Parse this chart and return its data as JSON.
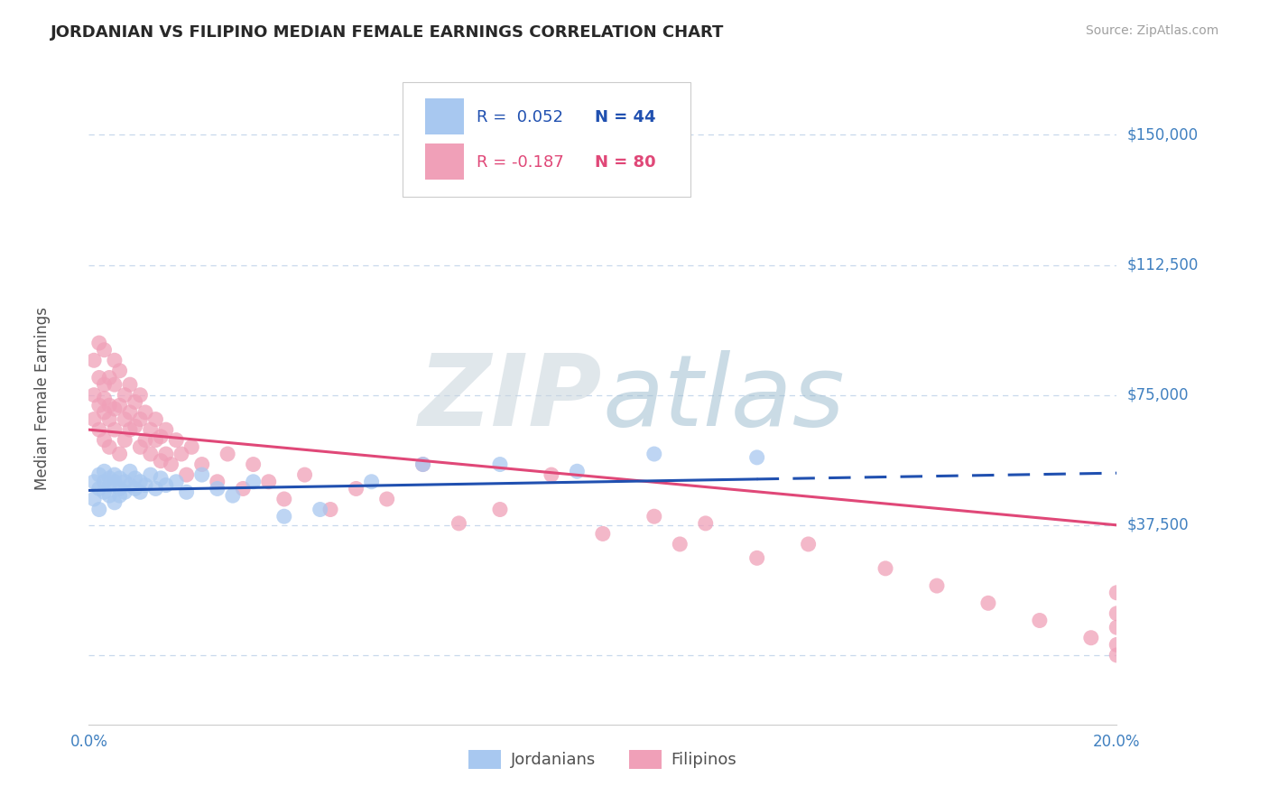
{
  "title": "JORDANIAN VS FILIPINO MEDIAN FEMALE EARNINGS CORRELATION CHART",
  "source_text": "Source: ZipAtlas.com",
  "ylabel": "Median Female Earnings",
  "xlim": [
    0.0,
    0.2
  ],
  "ylim": [
    -20000,
    168000
  ],
  "yticks": [
    0,
    37500,
    75000,
    112500,
    150000
  ],
  "ytick_labels": [
    "",
    "$37,500",
    "$75,000",
    "$112,500",
    "$150,000"
  ],
  "xticks": [
    0.0,
    0.04,
    0.08,
    0.12,
    0.16,
    0.2
  ],
  "xtick_labels": [
    "0.0%",
    "",
    "",
    "",
    "",
    "20.0%"
  ],
  "legend_r1": "R =  0.052",
  "legend_n1": "N = 44",
  "legend_r2": "R = -0.187",
  "legend_n2": "N = 80",
  "jordanian_color": "#A8C8F0",
  "filipino_color": "#F0A0B8",
  "jordan_line_color": "#2050B0",
  "filipino_line_color": "#E04878",
  "grid_color": "#C8D8EC",
  "background_color": "#FFFFFF",
  "title_color": "#282828",
  "axis_label_color": "#505050",
  "tick_label_color": "#4080C0",
  "source_color": "#A0A0A0",
  "jordanians_label": "Jordanians",
  "filipinos_label": "Filipinos",
  "jordan_R": 0.052,
  "jordan_N": 44,
  "filipino_R": -0.187,
  "filipino_N": 80,
  "jordan_line_x0": 0.0,
  "jordan_line_x_solid_end": 0.13,
  "jordan_line_x1": 0.2,
  "jordan_line_y0": 47500,
  "jordan_line_y1": 52500,
  "filipino_line_x0": 0.0,
  "filipino_line_x1": 0.2,
  "filipino_line_y0": 65000,
  "filipino_line_y1": 37500,
  "jordan_scatter_x": [
    0.001,
    0.001,
    0.002,
    0.002,
    0.002,
    0.003,
    0.003,
    0.003,
    0.004,
    0.004,
    0.004,
    0.005,
    0.005,
    0.005,
    0.006,
    0.006,
    0.006,
    0.007,
    0.007,
    0.008,
    0.008,
    0.009,
    0.009,
    0.01,
    0.01,
    0.011,
    0.012,
    0.013,
    0.014,
    0.015,
    0.017,
    0.019,
    0.022,
    0.025,
    0.028,
    0.032,
    0.038,
    0.045,
    0.055,
    0.065,
    0.08,
    0.095,
    0.11,
    0.13
  ],
  "jordan_scatter_y": [
    50000,
    45000,
    52000,
    48000,
    42000,
    50000,
    47000,
    53000,
    49000,
    51000,
    46000,
    50000,
    44000,
    52000,
    48000,
    51000,
    46000,
    50000,
    47000,
    49000,
    53000,
    48000,
    51000,
    50000,
    47000,
    49000,
    52000,
    48000,
    51000,
    49000,
    50000,
    47000,
    52000,
    48000,
    46000,
    50000,
    40000,
    42000,
    50000,
    55000,
    55000,
    53000,
    58000,
    57000
  ],
  "filipino_scatter_x": [
    0.001,
    0.001,
    0.001,
    0.002,
    0.002,
    0.002,
    0.002,
    0.003,
    0.003,
    0.003,
    0.003,
    0.003,
    0.004,
    0.004,
    0.004,
    0.004,
    0.005,
    0.005,
    0.005,
    0.005,
    0.006,
    0.006,
    0.006,
    0.007,
    0.007,
    0.007,
    0.008,
    0.008,
    0.008,
    0.009,
    0.009,
    0.01,
    0.01,
    0.01,
    0.011,
    0.011,
    0.012,
    0.012,
    0.013,
    0.013,
    0.014,
    0.014,
    0.015,
    0.015,
    0.016,
    0.017,
    0.018,
    0.019,
    0.02,
    0.022,
    0.025,
    0.027,
    0.03,
    0.032,
    0.035,
    0.038,
    0.042,
    0.047,
    0.052,
    0.058,
    0.065,
    0.072,
    0.08,
    0.09,
    0.1,
    0.11,
    0.115,
    0.12,
    0.13,
    0.14,
    0.155,
    0.165,
    0.175,
    0.185,
    0.195,
    0.2,
    0.2,
    0.2,
    0.2,
    0.2
  ],
  "filipino_scatter_y": [
    68000,
    75000,
    85000,
    72000,
    80000,
    65000,
    90000,
    70000,
    78000,
    62000,
    88000,
    74000,
    80000,
    68000,
    72000,
    60000,
    85000,
    71000,
    65000,
    78000,
    72000,
    58000,
    82000,
    68000,
    75000,
    62000,
    78000,
    65000,
    70000,
    66000,
    73000,
    60000,
    68000,
    75000,
    62000,
    70000,
    58000,
    65000,
    62000,
    68000,
    56000,
    63000,
    58000,
    65000,
    55000,
    62000,
    58000,
    52000,
    60000,
    55000,
    50000,
    58000,
    48000,
    55000,
    50000,
    45000,
    52000,
    42000,
    48000,
    45000,
    55000,
    38000,
    42000,
    52000,
    35000,
    40000,
    32000,
    38000,
    28000,
    32000,
    25000,
    20000,
    15000,
    10000,
    5000,
    0,
    8000,
    12000,
    3000,
    18000
  ]
}
